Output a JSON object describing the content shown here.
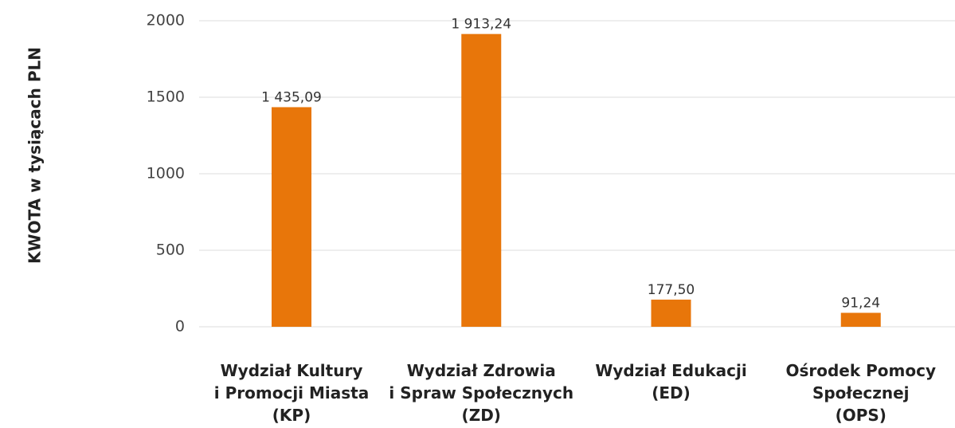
{
  "chart_data": {
    "type": "bar",
    "y_label": "KWOTA w tysiącach PLN",
    "categories": [
      "Wydział Kultury\ni Promocji Miasta\n(KP)",
      "Wydział Zdrowia\ni Spraw Społecznych\n(ZD)",
      "Wydział Edukacji\n(ED)",
      "Ośrodek Pomocy\nSpołecznej\n(OPS)"
    ],
    "values": [
      1435.09,
      1913.24,
      177.5,
      91.24
    ],
    "value_labels": [
      "1 435,09",
      "1 913,24",
      "177,50",
      "91,24"
    ],
    "color": "#e8760a",
    "ylim": [
      0,
      2000
    ],
    "yticks": [
      0,
      500,
      1000,
      1500,
      2000
    ],
    "grid": true
  }
}
